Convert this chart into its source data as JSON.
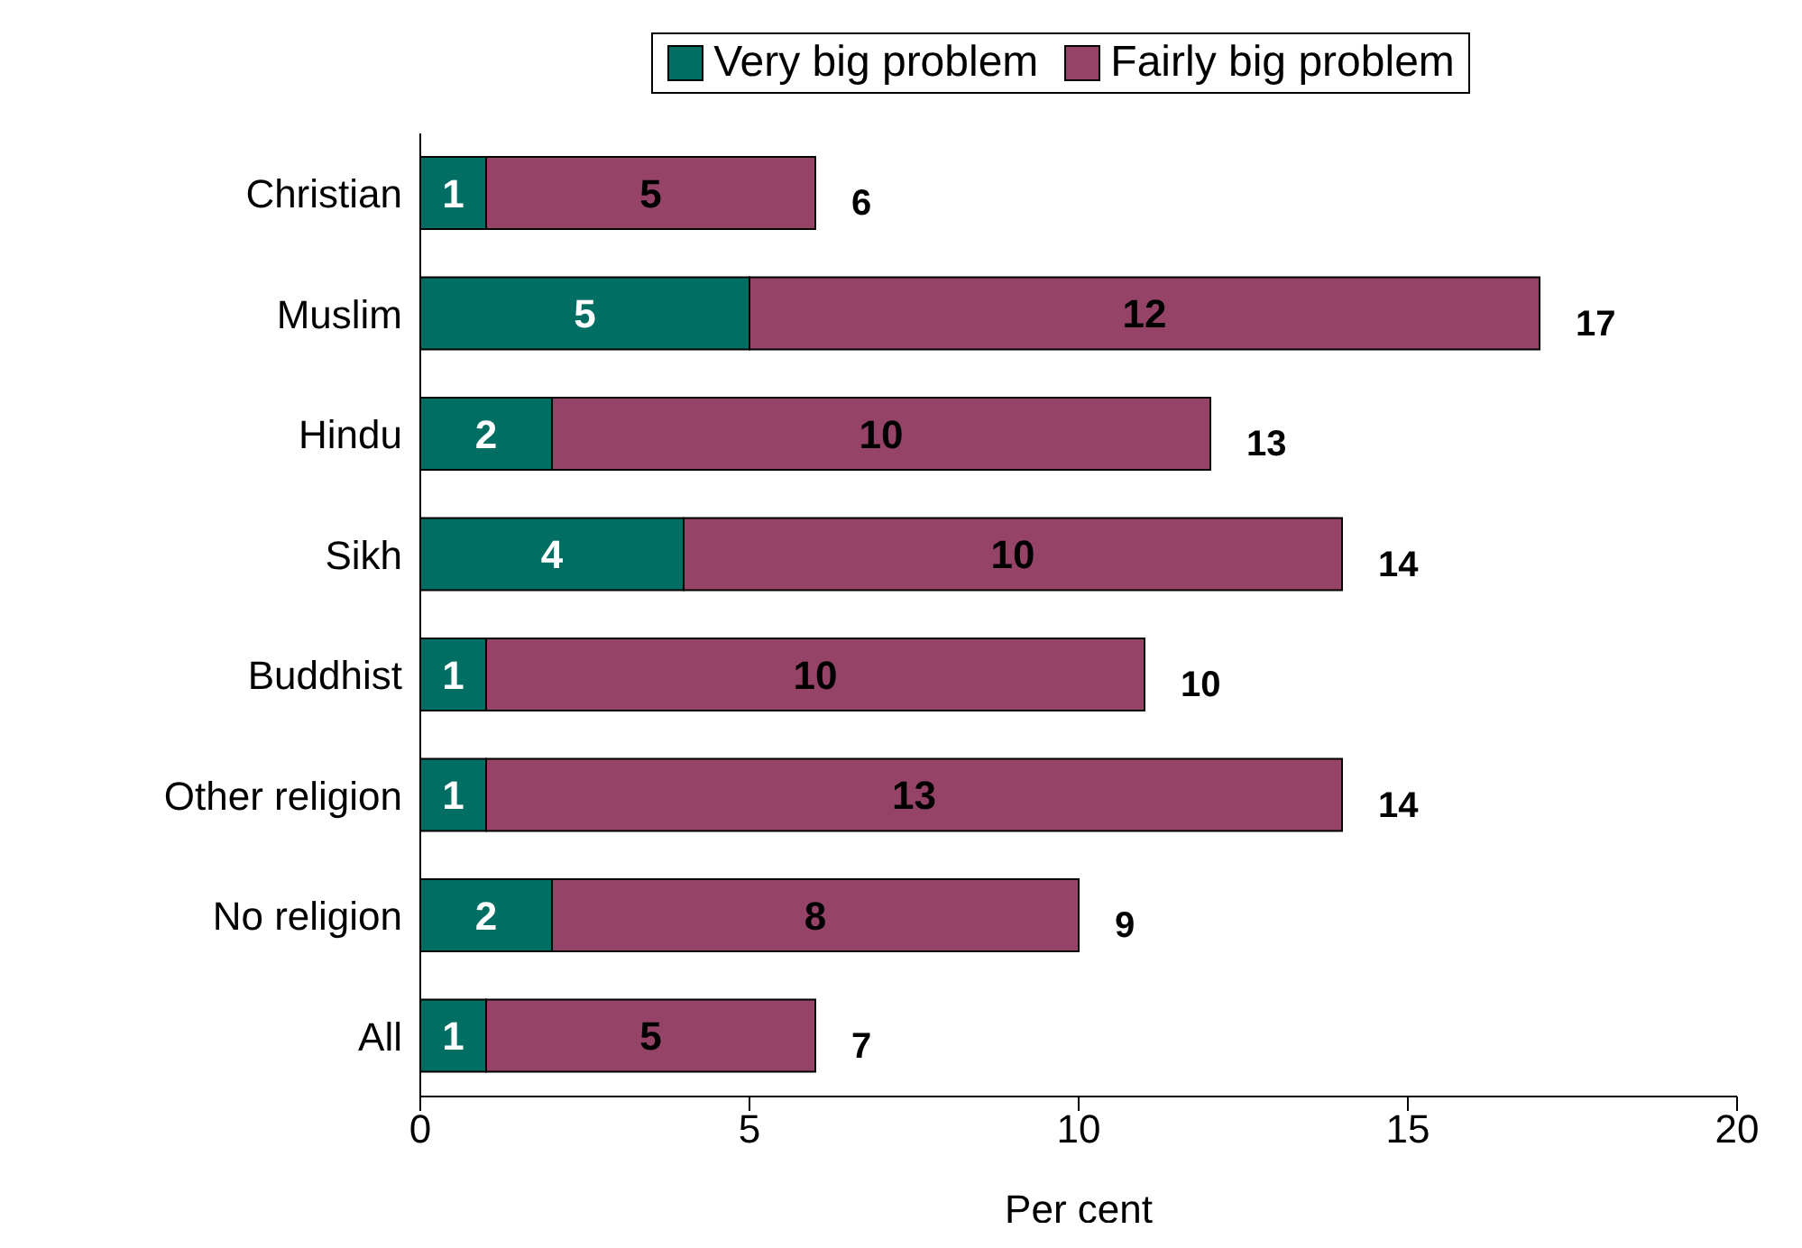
{
  "chart_data": {
    "type": "bar",
    "orientation": "horizontal",
    "stacked": true,
    "categories": [
      "Christian",
      "Muslim",
      "Hindu",
      "Sikh",
      "Buddhist",
      "Other religion",
      "No religion",
      "All"
    ],
    "series": [
      {
        "name": "Very big problem",
        "color": "#006e63",
        "values": [
          1,
          5,
          2,
          4,
          1,
          1,
          2,
          1
        ]
      },
      {
        "name": "Fairly big problem",
        "color": "#954366",
        "values": [
          5,
          12,
          10,
          10,
          10,
          13,
          8,
          5
        ]
      }
    ],
    "totals": [
      "6",
      "17",
      "13",
      "14",
      "10",
      "14",
      "9",
      "7"
    ],
    "data_labels": true,
    "xlabel": "Per cent",
    "xlim": [
      0,
      20
    ],
    "xticks": [
      0,
      5,
      10,
      15,
      20
    ],
    "grid": false,
    "legend": "top"
  }
}
